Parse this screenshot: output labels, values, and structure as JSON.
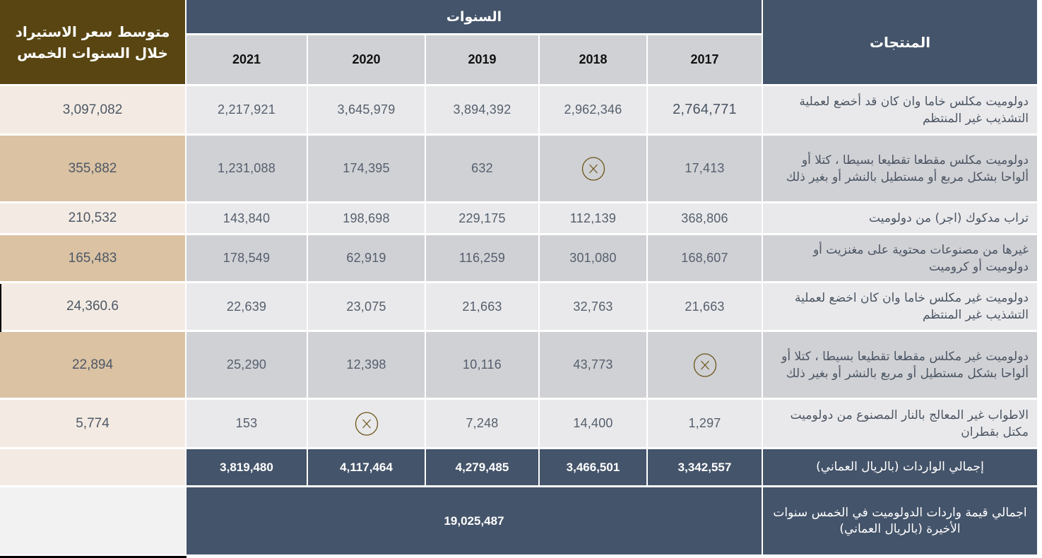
{
  "header": {
    "products_label": "المنتجات",
    "years_label": "السنوات",
    "average_label": "متوسط سعر الاستيراد خلال السنوات الخمس",
    "years": [
      "2021",
      "2020",
      "2019",
      "2018",
      "2017"
    ]
  },
  "rows": [
    {
      "product": "دولوميت مكلس خاما وان كان قد أخضع لعملية التشذيب غير المنتظم",
      "values": {
        "2021": "2,217,921",
        "2020": "3,645,979",
        "2019": "3,894,392",
        "2018": "2,962,346",
        "2017": "2,764,771"
      },
      "average": "3,097,082"
    },
    {
      "product": "دولوميت مكلس مقطعا تقطيعا بسيطا ، كتلا أو ألواحا بشكل مربع أو مستطيل بالنشر أو بغير ذلك",
      "values": {
        "2021": "1,231,088",
        "2020": "174,395",
        "2019": "632",
        "2018": null,
        "2017": "17,413"
      },
      "average": "355,882"
    },
    {
      "product": "تراب مدكوك (اجر) من دولوميت",
      "values": {
        "2021": "143,840",
        "2020": "198,698",
        "2019": "229,175",
        "2018": "112,139",
        "2017": "368,806"
      },
      "average": "210,532"
    },
    {
      "product": "غيرها من مصنوعات محتوية على مغنزيت أو دولوميت أو كروميت",
      "values": {
        "2021": "178,549",
        "2020": "62,919",
        "2019": "116,259",
        "2018": "301,080",
        "2017": "168,607"
      },
      "average": "165,483"
    },
    {
      "product": "دولوميت غير مكلس خاما وان كان اخضع لعملية التشذيب غير المنتظم",
      "values": {
        "2021": "22,639",
        "2020": "23,075",
        "2019": "21,663",
        "2018": "32,763",
        "2017": "21,663"
      },
      "average": "24,360.6"
    },
    {
      "product": "دولوميت غير مكلس مقطعا تقطيعا بسيطا ، كتلا أو ألواحا بشكل مستطيل أو مربع بالنشر أو بغير ذلك",
      "values": {
        "2021": "25,290",
        "2020": "12,398",
        "2019": "10,116",
        "2018": "43,773",
        "2017": null
      },
      "average": "22,894"
    },
    {
      "product": "الاطواب غير المعالج بالنار المصنوع من دولوميت مكتل بقطران",
      "values": {
        "2021": "153",
        "2020": null,
        "2019": "7,248",
        "2018": "14,400",
        "2017": "1,297"
      },
      "average": "5,774"
    }
  ],
  "totals": {
    "label": "إجمالي الواردات (بالريال العماني)",
    "values": {
      "2021": "3,819,480",
      "2020": "4,117,464",
      "2019": "4,279,485",
      "2018": "3,466,501",
      "2017": "3,342,557"
    }
  },
  "grand_total": {
    "label": "اجمالي قيمة واردات الدولوميت في الخمس سنوات الأخيرة (بالريال العماني)",
    "value": "19,025,487"
  },
  "missing_value_icon": "circled-x-icon",
  "colors": {
    "header_navy": "#44546a",
    "average_header_brown": "#584511",
    "average_light": "#f3ebe3",
    "average_dark": "#dac2a3",
    "row_light": "#e9e9eb",
    "row_dark": "#d0d1d5",
    "missing_icon": "#6b5416"
  }
}
